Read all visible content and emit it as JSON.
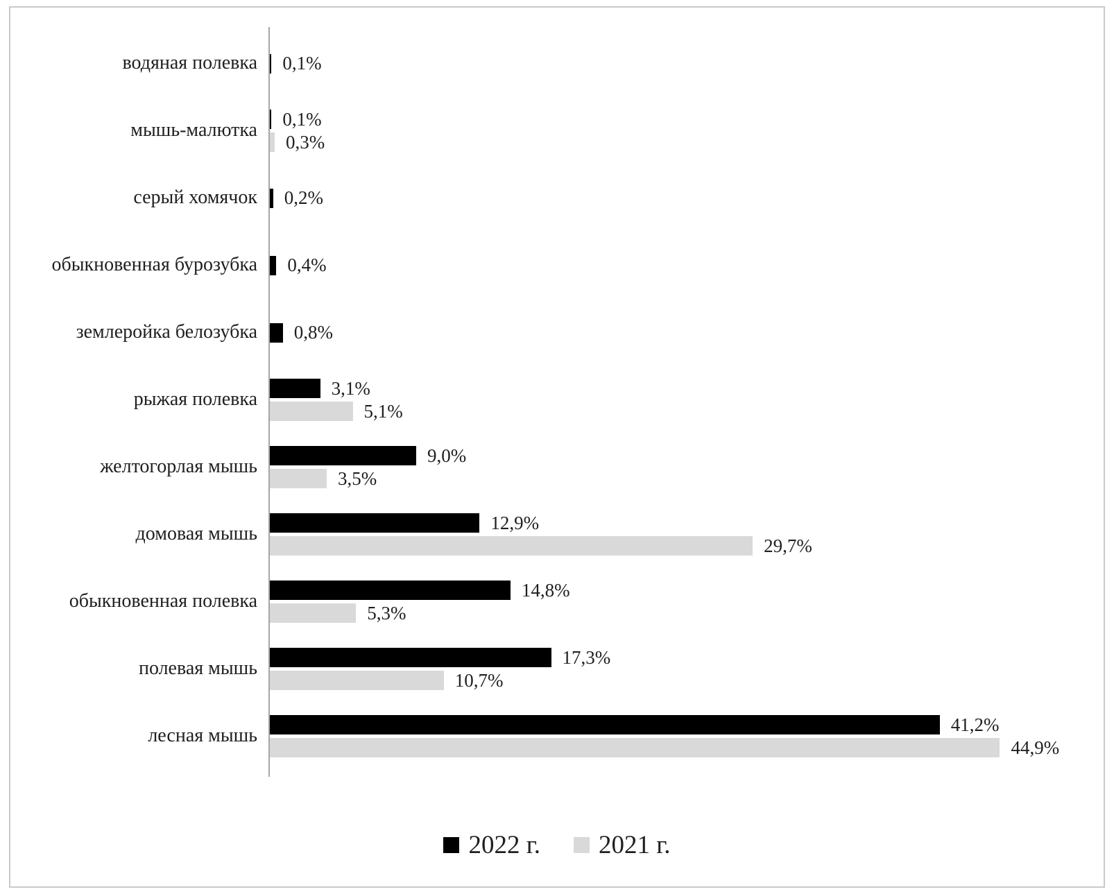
{
  "chart_data": {
    "type": "bar",
    "orientation": "horizontal",
    "title": "",
    "xlabel": "",
    "ylabel": "",
    "xlim": [
      0,
      50
    ],
    "grid": false,
    "legend_position": "bottom",
    "categories": [
      "водяная полевка",
      "мышь-малютка",
      "серый хомячок",
      "обыкновенная бурозубка",
      "землеройка белозубка",
      "рыжая полевка",
      "желтогорлая мышь",
      "домовая мышь",
      "обыкновенная полевка",
      "полевая мышь",
      "лесная мышь"
    ],
    "series": [
      {
        "name": "2022 г.",
        "color": "#000000",
        "values": [
          0.1,
          0.1,
          0.2,
          0.4,
          0.8,
          3.1,
          9.0,
          12.9,
          14.8,
          17.3,
          41.2
        ],
        "labels": [
          "0,1%",
          "0,1%",
          "0,2%",
          "0,4%",
          "0,8%",
          "3,1%",
          "9,0%",
          "12,9%",
          "14,8%",
          "17,3%",
          "41,2%"
        ]
      },
      {
        "name": "2021 г.",
        "color": "#d9d9d9",
        "values": [
          null,
          0.3,
          null,
          null,
          null,
          5.1,
          3.5,
          29.7,
          5.3,
          10.7,
          44.9
        ],
        "labels": [
          null,
          "0,3%",
          null,
          null,
          null,
          "5,1%",
          "3,5%",
          "29,7%",
          "5,3%",
          "10,7%",
          "44,9%"
        ]
      }
    ],
    "axis_color": "#a6a6a6",
    "frame_border_color": "#c9c9c9"
  }
}
